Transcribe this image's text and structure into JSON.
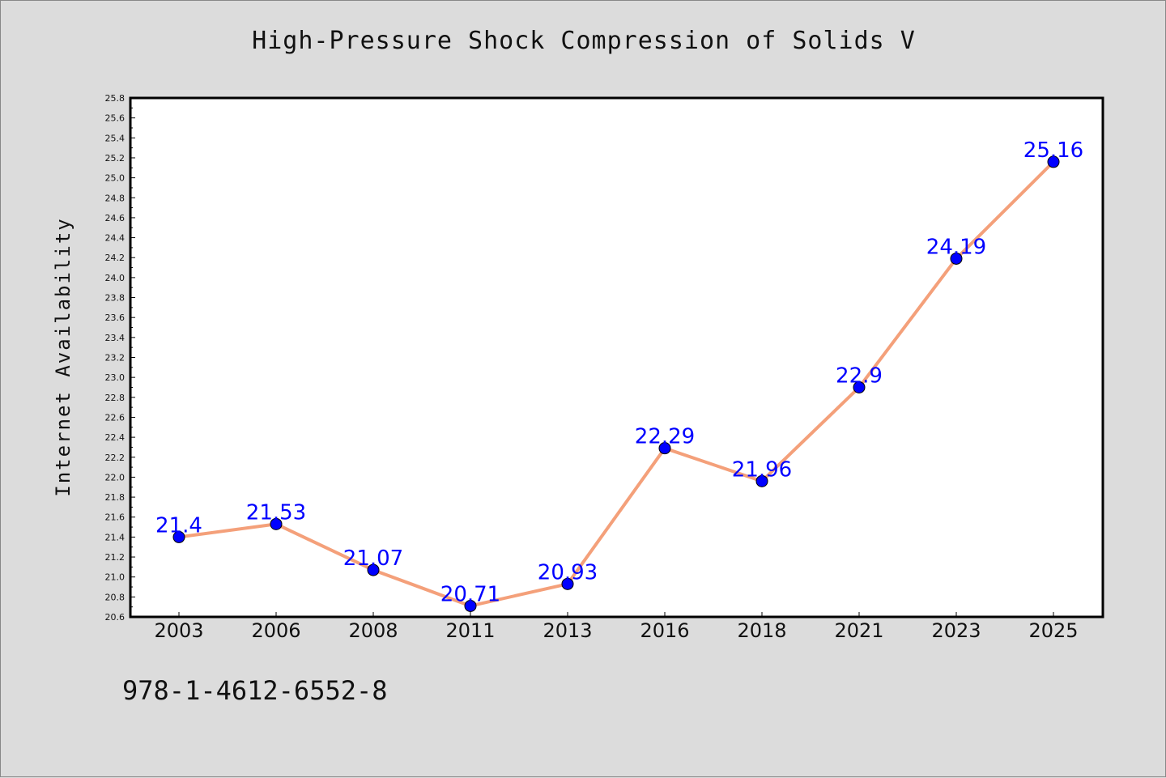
{
  "figure": {
    "title": "High-Pressure Shock Compression of Solids V",
    "isbn": "978-1-4612-6552-8",
    "background_color": "#dcdcdc"
  },
  "chart_data": {
    "type": "line",
    "title": "High-Pressure Shock Compression of Solids V",
    "xlabel": "",
    "ylabel": "Internet Availability",
    "categories": [
      "2003",
      "2006",
      "2008",
      "2011",
      "2013",
      "2016",
      "2018",
      "2021",
      "2023",
      "2025"
    ],
    "series": [
      {
        "values": [
          21.4,
          21.53,
          21.07,
          20.71,
          20.93,
          22.29,
          21.96,
          22.9,
          24.19,
          25.16
        ],
        "data_labels": [
          "21.4",
          "21.53",
          "21.07",
          "20.71",
          "20.93",
          "22.29",
          "21.96",
          "22.9",
          "24.19",
          "25.16"
        ],
        "line_color": "#f4a07a",
        "marker_color": "#0000ff",
        "label_color": "#0000ff"
      }
    ],
    "ylim": [
      20.6,
      25.8
    ],
    "ytick_step": 0.2,
    "yticks": [
      "20.6",
      "20.8",
      "21.0",
      "21.2",
      "21.4",
      "21.6",
      "21.8",
      "22.0",
      "22.2",
      "22.4",
      "22.6",
      "22.8",
      "23.0",
      "23.2",
      "23.4",
      "23.6",
      "23.8",
      "24.0",
      "24.2",
      "24.4",
      "24.6",
      "24.8",
      "25.0",
      "25.2",
      "25.4",
      "25.6",
      "25.8"
    ],
    "grid": false,
    "legend": "none"
  }
}
